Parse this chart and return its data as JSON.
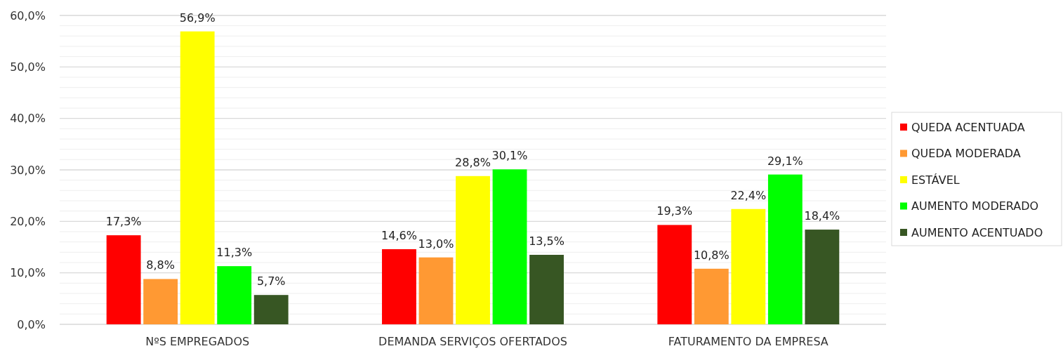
{
  "chart_data": {
    "type": "bar",
    "categories": [
      "NºS EMPREGADOS",
      "DEMANDA SERVIÇOS OFERTADOS",
      "FATURAMENTO DA EMPRESA"
    ],
    "series": [
      {
        "name": "QUEDA ACENTUADA",
        "color": "#ff0000",
        "values": [
          17.3,
          14.6,
          19.3
        ],
        "value_labels": [
          "17,3%",
          "14,6%",
          "19,3%"
        ]
      },
      {
        "name": "QUEDA MODERADA",
        "color": "#ff9933",
        "values": [
          8.8,
          13.0,
          10.8
        ],
        "value_labels": [
          "8,8%",
          "13,0%",
          "10,8%"
        ]
      },
      {
        "name": "ESTÁVEL",
        "color": "#ffff00",
        "values": [
          56.9,
          28.8,
          22.4
        ],
        "value_labels": [
          "56,9%",
          "28,8%",
          "22,4%"
        ]
      },
      {
        "name": "AUMENTO MODERADO",
        "color": "#00ff00",
        "values": [
          11.3,
          30.1,
          29.1
        ],
        "value_labels": [
          "11,3%",
          "30,1%",
          "29,1%"
        ]
      },
      {
        "name": "AUMENTO ACENTUADO",
        "color": "#375623",
        "values": [
          5.7,
          13.5,
          18.4
        ],
        "value_labels": [
          "5,7%",
          "13,5%",
          "18,4%"
        ]
      }
    ],
    "ylim": [
      0,
      60
    ],
    "yticks": [
      {
        "value": 0,
        "label": "0,0%"
      },
      {
        "value": 2,
        "label": null
      },
      {
        "value": 4,
        "label": null
      },
      {
        "value": 6,
        "label": null
      },
      {
        "value": 8,
        "label": null
      },
      {
        "value": 10,
        "label": "10,0%"
      },
      {
        "value": 12,
        "label": null
      },
      {
        "value": 14,
        "label": null
      },
      {
        "value": 16,
        "label": null
      },
      {
        "value": 18,
        "label": null
      },
      {
        "value": 20,
        "label": "20,0%"
      },
      {
        "value": 22,
        "label": null
      },
      {
        "value": 24,
        "label": null
      },
      {
        "value": 26,
        "label": null
      },
      {
        "value": 28,
        "label": null
      },
      {
        "value": 30,
        "label": "30,0%"
      },
      {
        "value": 32,
        "label": null
      },
      {
        "value": 34,
        "label": null
      },
      {
        "value": 36,
        "label": null
      },
      {
        "value": 38,
        "label": null
      },
      {
        "value": 40,
        "label": "40,0%"
      },
      {
        "value": 42,
        "label": null
      },
      {
        "value": 44,
        "label": null
      },
      {
        "value": 46,
        "label": null
      },
      {
        "value": 48,
        "label": null
      },
      {
        "value": 50,
        "label": "50,0%"
      },
      {
        "value": 52,
        "label": null
      },
      {
        "value": 54,
        "label": null
      },
      {
        "value": 56,
        "label": null
      },
      {
        "value": 58,
        "label": null
      },
      {
        "value": 60,
        "label": "60,0%"
      }
    ],
    "grid": true,
    "legend": "right"
  }
}
